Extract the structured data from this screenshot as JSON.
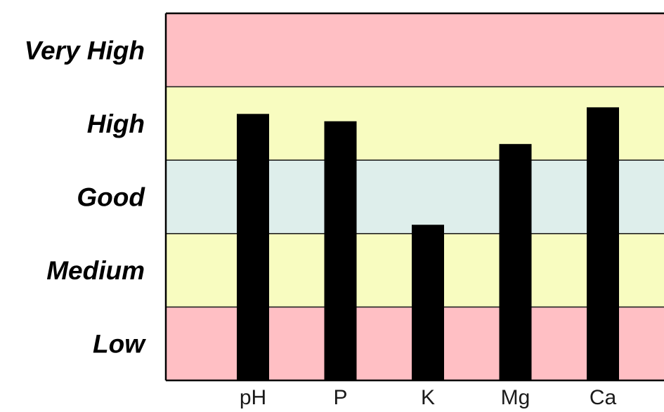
{
  "chart_data": {
    "type": "bar",
    "categories": [
      "pH",
      "P",
      "K",
      "Mg",
      "Ca"
    ],
    "values": [
      3.63,
      3.53,
      2.12,
      3.22,
      3.72
    ],
    "ylim": [
      0,
      5
    ],
    "grid": false,
    "bands": [
      {
        "label": "Low",
        "from": 0,
        "to": 1,
        "color": "#ffbfc4"
      },
      {
        "label": "Medium",
        "from": 1,
        "to": 2,
        "color": "#f8fcc0"
      },
      {
        "label": "Good",
        "from": 2,
        "to": 3,
        "color": "#deeeeb"
      },
      {
        "label": "High",
        "from": 3,
        "to": 4,
        "color": "#f8fcc0"
      },
      {
        "label": "Very High",
        "from": 4,
        "to": 5,
        "color": "#ffbfc4"
      }
    ],
    "bar_color": "#000000"
  }
}
